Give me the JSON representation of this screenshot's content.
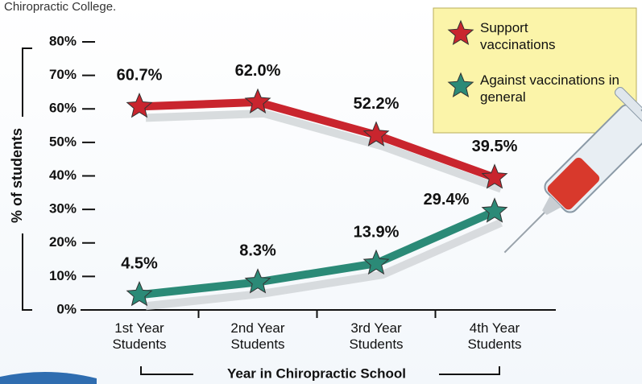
{
  "chart_data": {
    "type": "line",
    "title": "Chiropractic College.",
    "xlabel": "Year in Chiropractic School",
    "ylabel": "% of students",
    "categories": [
      "1st Year Students",
      "2nd Year Students",
      "3rd Year Students",
      "4th Year Students"
    ],
    "series": [
      {
        "name": "Support vaccinations",
        "color": "#c9252e",
        "values": [
          60.7,
          62.0,
          52.2,
          39.5
        ],
        "value_labels": [
          "60.7%",
          "62.0%",
          "52.2%",
          "39.5%"
        ]
      },
      {
        "name": "Against vaccinations in general",
        "color": "#2b8a77",
        "values": [
          4.5,
          8.3,
          13.9,
          29.4
        ],
        "value_labels": [
          "4.5%",
          "8.3%",
          "13.9%",
          "29.4%"
        ]
      }
    ],
    "ylim": [
      0,
      80
    ],
    "yticks": [
      {
        "value": 0,
        "label": "0%"
      },
      {
        "value": 10,
        "label": "10%"
      },
      {
        "value": 20,
        "label": "20%"
      },
      {
        "value": 30,
        "label": "30%"
      },
      {
        "value": 40,
        "label": "40%"
      },
      {
        "value": 50,
        "label": "50%"
      },
      {
        "value": 60,
        "label": "60%"
      },
      {
        "value": 70,
        "label": "70%"
      },
      {
        "value": 80,
        "label": "80%"
      }
    ],
    "legend": "top-right"
  }
}
